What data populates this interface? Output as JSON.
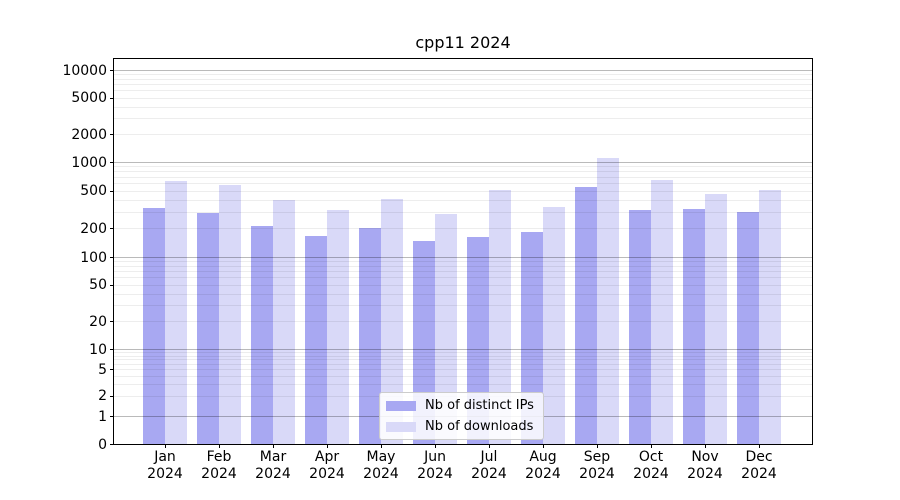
{
  "figure": {
    "title": "cpp11 2024"
  },
  "chart_data": {
    "type": "bar",
    "title": "cpp11 2024",
    "yscale": "symlog",
    "grid": true,
    "categories": [
      "Jan 2024",
      "Feb 2024",
      "Mar 2024",
      "Apr 2024",
      "May 2024",
      "Jun 2024",
      "Jul 2024",
      "Aug 2024",
      "Sep 2024",
      "Oct 2024",
      "Nov 2024",
      "Dec 2024"
    ],
    "series": [
      {
        "name": "Nb of distinct IPs",
        "color": "#a8a8f2",
        "values": [
          330,
          290,
          210,
          166,
          200,
          147,
          162,
          183,
          540,
          310,
          320,
          300
        ]
      },
      {
        "name": "Nb of downloads",
        "color": "#d9d9f8",
        "values": [
          630,
          580,
          400,
          315,
          410,
          285,
          505,
          335,
          1100,
          655,
          465,
          510
        ]
      }
    ],
    "y_ticks": [
      {
        "label": "0",
        "value": 0
      },
      {
        "label": "1",
        "value": 1
      },
      {
        "label": "2",
        "value": 2
      },
      {
        "label": "5",
        "value": 5
      },
      {
        "label": "10",
        "value": 10
      },
      {
        "label": "20",
        "value": 20
      },
      {
        "label": "50",
        "value": 50
      },
      {
        "label": "100",
        "value": 100
      },
      {
        "label": "200",
        "value": 200
      },
      {
        "label": "500",
        "value": 500
      },
      {
        "label": "1000",
        "value": 1000
      },
      {
        "label": "2000",
        "value": 2000
      },
      {
        "label": "5000",
        "value": 5000
      },
      {
        "label": "10000",
        "value": 10000
      }
    ],
    "ylim": [
      0,
      13000
    ],
    "legend_position": "lower center",
    "xlabel": "",
    "ylabel": ""
  }
}
